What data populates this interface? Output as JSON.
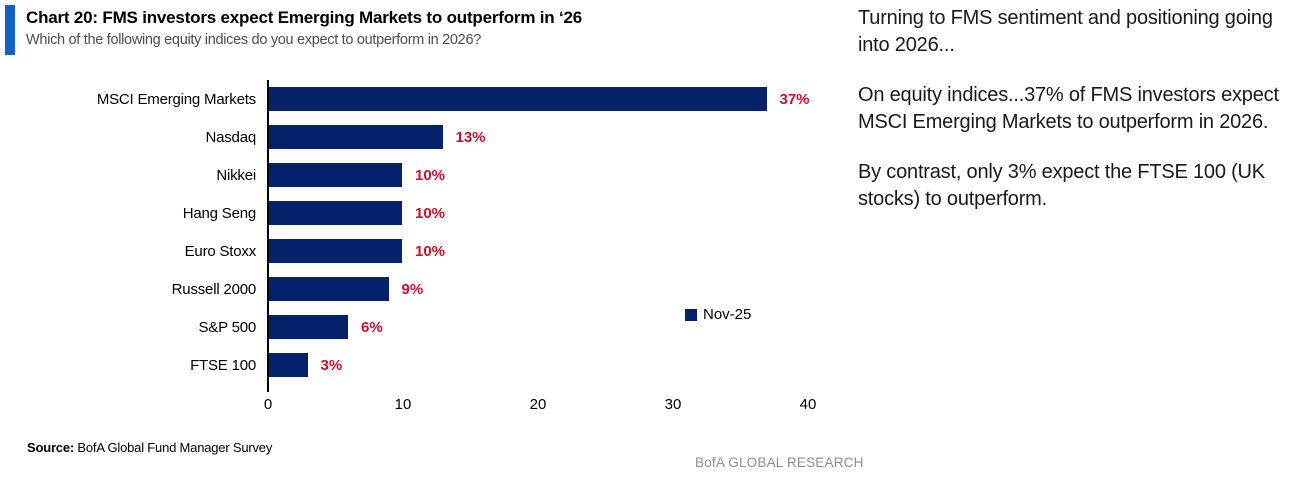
{
  "header": {
    "title": "Chart 20: FMS investors expect Emerging Markets to outperform in ‘26",
    "subtitle": "Which of the following equity indices do you expect to outperform in 2026?"
  },
  "chart_data": {
    "type": "bar",
    "orientation": "horizontal",
    "title": "Chart 20: FMS investors expect Emerging Markets to outperform in ‘26",
    "categories": [
      "MSCI Emerging Markets",
      "Nasdaq",
      "Nikkei",
      "Hang Seng",
      "Euro Stoxx",
      "Russell 2000",
      "S&P 500",
      "FTSE 100"
    ],
    "values": [
      37,
      13,
      10,
      10,
      10,
      9,
      6,
      3
    ],
    "value_labels": [
      "37%",
      "13%",
      "10%",
      "10%",
      "10%",
      "9%",
      "6%",
      "3%"
    ],
    "xlim": [
      0,
      40
    ],
    "x_ticks": [
      0,
      10,
      20,
      30,
      40
    ],
    "grid": false,
    "legend": {
      "label": "Nov-25",
      "position": "right-of-plot"
    },
    "bar_color": "#04216b",
    "value_label_color": "#c8102e"
  },
  "side_text": {
    "paragraphs": [
      "Turning to FMS sentiment and positioning going into 2026...",
      "On equity indices...37% of FMS investors expect MSCI Emerging Markets to outperform in 2026.",
      "By contrast, only 3% expect the FTSE 100 (UK stocks) to outperform."
    ]
  },
  "source": {
    "label": "Source:",
    "text": " BofA Global Fund Manager Survey"
  },
  "footer": {
    "brand": "BofA GLOBAL RESEARCH"
  },
  "colors": {
    "accent_blue": "#1261c7",
    "bar_navy": "#04216b",
    "value_red": "#c8102e",
    "subtitle_gray": "#4d4d4d",
    "footer_gray": "#8e8e8e"
  }
}
